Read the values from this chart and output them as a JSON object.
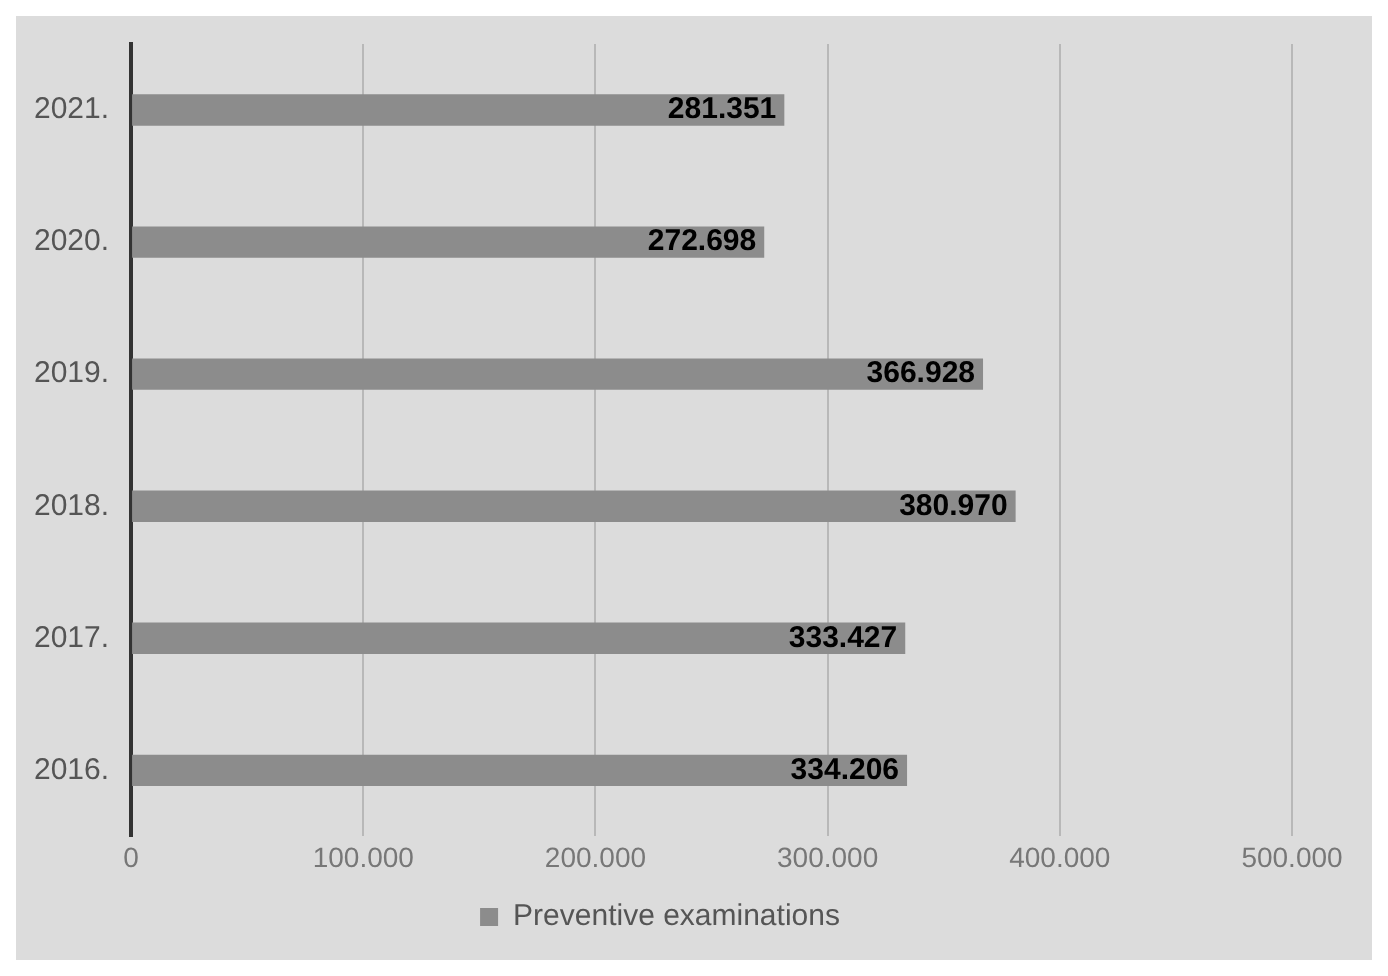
{
  "chart_data": {
    "type": "bar",
    "orientation": "horizontal",
    "categories": [
      "2021.",
      "2020.",
      "2019.",
      "2018.",
      "2017.",
      "2016."
    ],
    "series": [
      {
        "name": "Preventive examinations",
        "color": "#8c8c8c",
        "values": [
          281351,
          272698,
          366928,
          380970,
          333427,
          334206
        ]
      }
    ],
    "value_labels": [
      "281.351",
      "272.698",
      "366.928",
      "380.970",
      "333.427",
      "334.206"
    ],
    "xlim": [
      0,
      500000
    ],
    "xticks": [
      0,
      {
        "value": 100000,
        "label": "100.000"
      },
      {
        "value": 200000,
        "label": "200.000"
      },
      {
        "value": 300000,
        "label": "300.000"
      },
      {
        "value": 400000,
        "label": "400.000"
      },
      {
        "value": 500000,
        "label": "500.000"
      }
    ],
    "grid": "x",
    "legend": "bottom"
  }
}
